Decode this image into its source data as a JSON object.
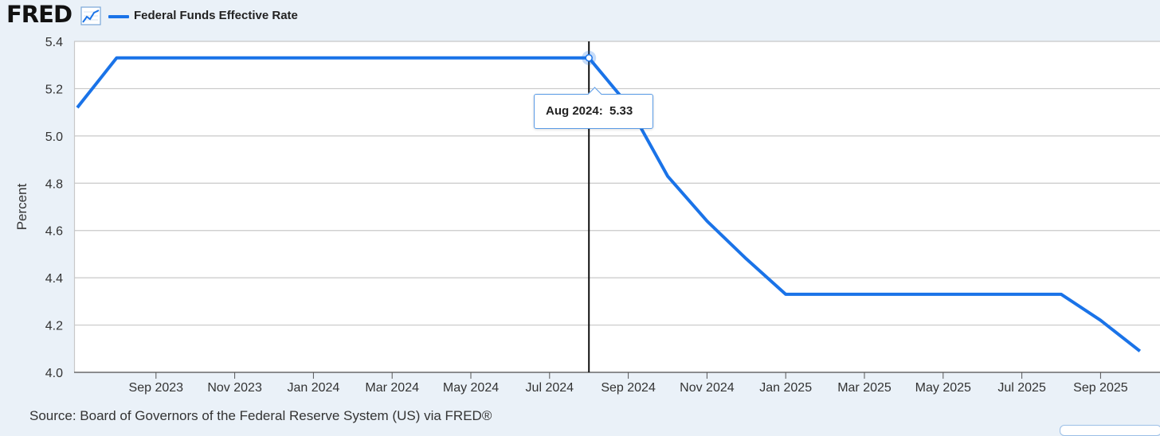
{
  "header": {
    "logo_text": "FRED",
    "logo_icon": "line-graph-icon",
    "legend_label": "Federal Funds Effective Rate",
    "legend_color": "#1a73e8"
  },
  "tooltip": {
    "date": "Aug 2024:",
    "value": "5.33"
  },
  "source": "Source: Board of Governors of the Federal Reserve System (US) via FRED®",
  "chart_data": {
    "type": "line",
    "title": "",
    "xlabel": "",
    "ylabel": "Percent",
    "ylim": [
      4.0,
      5.4
    ],
    "yticks": [
      "5.4",
      "5.2",
      "5.0",
      "4.8",
      "4.6",
      "4.4",
      "4.2",
      "4.0"
    ],
    "xticks": [
      "Sep 2023",
      "Nov 2023",
      "Jan 2024",
      "Mar 2024",
      "May 2024",
      "Jul 2024",
      "Sep 2024",
      "Nov 2024",
      "Jan 2025",
      "Mar 2025",
      "May 2025",
      "Jul 2025",
      "Sep 2025"
    ],
    "grid": true,
    "highlight": {
      "x": "2024-08",
      "y": 5.33
    },
    "series": [
      {
        "name": "Federal Funds Effective Rate",
        "color": "#1a73e8",
        "x": [
          "2023-07",
          "2023-08",
          "2023-09",
          "2023-10",
          "2023-11",
          "2023-12",
          "2024-01",
          "2024-02",
          "2024-03",
          "2024-04",
          "2024-05",
          "2024-06",
          "2024-07",
          "2024-08",
          "2024-09",
          "2024-10",
          "2024-11",
          "2024-12",
          "2025-01",
          "2025-02",
          "2025-03",
          "2025-04",
          "2025-05",
          "2025-06",
          "2025-07",
          "2025-08",
          "2025-09",
          "2025-10"
        ],
        "values": [
          5.12,
          5.33,
          5.33,
          5.33,
          5.33,
          5.33,
          5.33,
          5.33,
          5.33,
          5.33,
          5.33,
          5.33,
          5.33,
          5.33,
          5.13,
          4.83,
          4.64,
          4.48,
          4.33,
          4.33,
          4.33,
          4.33,
          4.33,
          4.33,
          4.33,
          4.33,
          4.22,
          4.09
        ]
      }
    ]
  }
}
